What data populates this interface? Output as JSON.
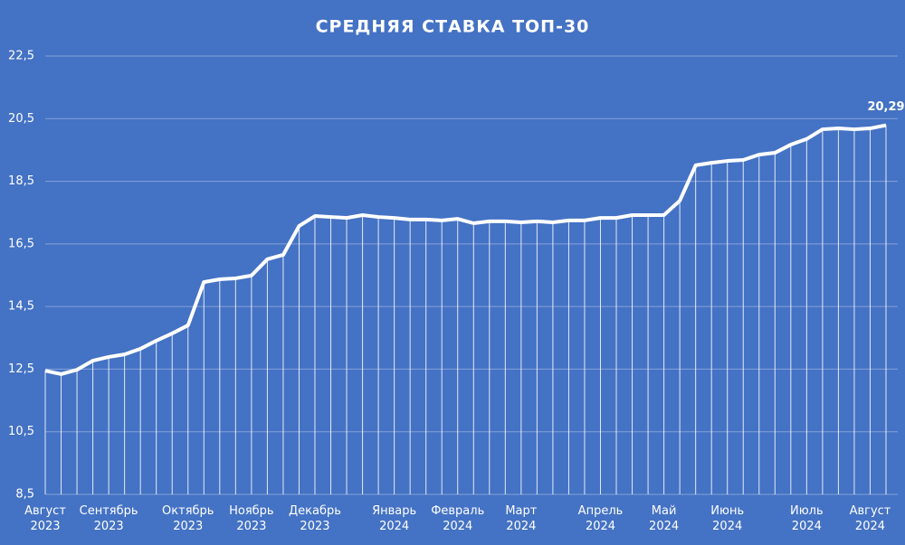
{
  "chart_data": {
    "type": "line",
    "title": "СРЕДНЯЯ СТАВКА ТОП-30",
    "categories": [
      "Август\n2023",
      null,
      null,
      null,
      "Сентябрь\n2023",
      null,
      null,
      null,
      null,
      "Октябрь\n2023",
      null,
      null,
      null,
      "Ноябрь\n2023",
      null,
      null,
      null,
      "Декабрь\n2023",
      null,
      null,
      null,
      null,
      "Январь\n2024",
      null,
      null,
      null,
      "Февраль\n2024",
      null,
      null,
      null,
      "Март\n2024",
      null,
      null,
      null,
      null,
      "Апрель\n2024",
      null,
      null,
      null,
      "Май\n2024",
      null,
      null,
      null,
      "Июнь\n2024",
      null,
      null,
      null,
      null,
      "Июль\n2024",
      null,
      null,
      null,
      "Август\n2024",
      null
    ],
    "series": [
      {
        "color": "#ffffff",
        "values": [
          12.45,
          12.34,
          12.48,
          12.77,
          12.89,
          12.97,
          13.15,
          13.41,
          13.64,
          13.9,
          15.28,
          15.37,
          15.4,
          15.49,
          16.01,
          16.15,
          17.07,
          17.39,
          17.36,
          17.33,
          17.42,
          17.36,
          17.33,
          17.28,
          17.28,
          17.25,
          17.3,
          17.16,
          17.22,
          17.22,
          17.19,
          17.22,
          17.19,
          17.25,
          17.25,
          17.33,
          17.33,
          17.42,
          17.42,
          17.42,
          17.88,
          19.01,
          19.09,
          19.15,
          19.18,
          19.35,
          19.41,
          19.67,
          19.85,
          20.16,
          20.19,
          20.16,
          20.19,
          20.29
        ],
        "value_labels": [
          null,
          null,
          null,
          null,
          null,
          null,
          null,
          null,
          null,
          null,
          null,
          null,
          null,
          null,
          null,
          null,
          null,
          null,
          null,
          null,
          null,
          null,
          null,
          null,
          null,
          null,
          null,
          null,
          null,
          null,
          null,
          null,
          null,
          null,
          null,
          null,
          null,
          null,
          null,
          null,
          null,
          null,
          null,
          null,
          null,
          null,
          null,
          null,
          null,
          null,
          null,
          null,
          null,
          "20,29"
        ]
      }
    ],
    "ylim": [
      8.5,
      22.5
    ],
    "yticks": [
      {
        "value": 8.5,
        "label": "8,5"
      },
      {
        "value": 10.5,
        "label": "10,5"
      },
      {
        "value": 12.5,
        "label": "12,5"
      },
      {
        "value": 14.5,
        "label": "14,5"
      },
      {
        "value": 16.5,
        "label": "16,5"
      },
      {
        "value": 18.5,
        "label": "18,5"
      },
      {
        "value": 20.5,
        "label": "20,5"
      },
      {
        "value": 22.5,
        "label": "22,5"
      }
    ],
    "grid": true,
    "background": "#4472c4"
  }
}
